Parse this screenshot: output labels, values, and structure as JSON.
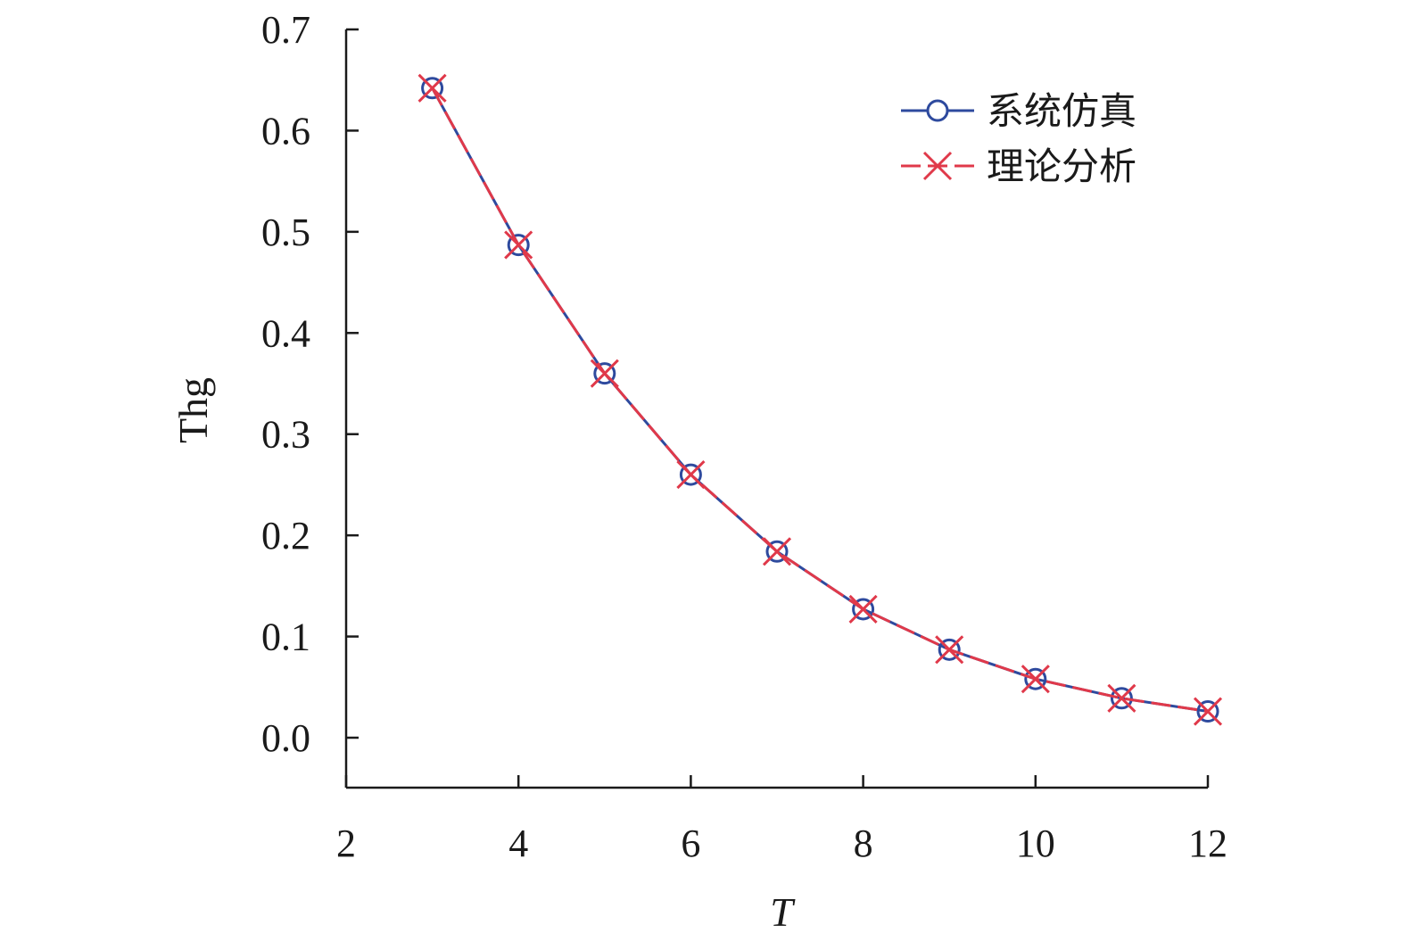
{
  "chart_data": {
    "type": "line",
    "title": "",
    "xlabel": "T",
    "ylabel": "Thg",
    "xlim": [
      2,
      12
    ],
    "ylim": [
      -0.05,
      0.7
    ],
    "xticks": [
      2,
      4,
      6,
      8,
      10,
      12
    ],
    "xtick_labels": [
      "2",
      "4",
      "6",
      "8",
      "10",
      "12"
    ],
    "yticks": [
      0.0,
      0.1,
      0.2,
      0.3,
      0.4,
      0.5,
      0.6,
      0.7
    ],
    "ytick_labels": [
      "0.0",
      "0.1",
      "0.2",
      "0.3",
      "0.4",
      "0.5",
      "0.6",
      "0.7"
    ],
    "grid": false,
    "legend_position": "top-right",
    "x": [
      3,
      4,
      5,
      6,
      7,
      8,
      9,
      10,
      11,
      12
    ],
    "series": [
      {
        "name": "系统仿真",
        "color": "#2e4a9e",
        "marker": "circle",
        "line_style": "solid",
        "values": [
          0.642,
          0.487,
          0.36,
          0.26,
          0.184,
          0.127,
          0.087,
          0.058,
          0.039,
          0.026
        ]
      },
      {
        "name": "理论分析",
        "color": "#e0394a",
        "marker": "x",
        "line_style": "dashed",
        "values": [
          0.642,
          0.487,
          0.36,
          0.26,
          0.184,
          0.127,
          0.087,
          0.058,
          0.039,
          0.026
        ]
      }
    ]
  }
}
